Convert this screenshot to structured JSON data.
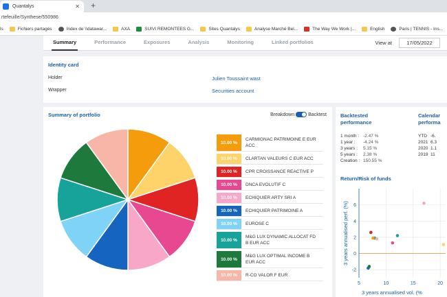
{
  "browser": {
    "tab_title": "Quantalys",
    "url": "rtefeuille/Synthese/550986",
    "bookmarks": [
      "ls",
      "Fichiers partagés",
      "Index de \\\\datawar...",
      "AXA",
      "SUIVI REMONTEES G...",
      "Sites Quantalys",
      "Analyse Marché Bel...",
      "The Way We Work |...",
      "English",
      "Paris | TENNIS - Ins..."
    ]
  },
  "nav": {
    "tabs": [
      "Summary",
      "Performance",
      "Exposures",
      "Analysis",
      "Monitoring",
      "Linked portfolios"
    ],
    "view_at_label": "View at",
    "date": "17/05/2022"
  },
  "identity": {
    "title": "Identity card",
    "holder_label": "Holder",
    "holder_value": "Julien Toussaint wast",
    "wrapper_label": "Wrapper",
    "wrapper_value": "Securities account"
  },
  "summary": {
    "title": "Summary of portfolio",
    "toggle_left": "Breakdown",
    "toggle_right": "Backtest",
    "items": [
      {
        "pct": "10.00 %",
        "name": "CARMIGNAC PATRIMOINE E EUR ACC",
        "color": "#f59c0c"
      },
      {
        "pct": "10.00 %",
        "name": "CLARTAN VALEURS C EUR ACC",
        "color": "#fdd36a"
      },
      {
        "pct": "10.00 %",
        "name": "CPR CROISSANCE REACTIVE P",
        "color": "#e02323"
      },
      {
        "pct": "10.00 %",
        "name": "DNCA EVOLUTIF C",
        "color": "#e8488f"
      },
      {
        "pct": "10.00 %",
        "name": "ECHIQUIER ARTY SRI A",
        "color": "#f8a7c9"
      },
      {
        "pct": "10.00 %",
        "name": "ECHIQUIER PATRIMOINE A",
        "color": "#1565c0"
      },
      {
        "pct": "10.00 %",
        "name": "EUROSE C",
        "color": "#7fd3f7"
      },
      {
        "pct": "10.00 %",
        "name": "M&G LUX DYNAMIC ALLOCAT FD B EUR ACC",
        "color": "#17a39a"
      },
      {
        "pct": "10.00 %",
        "name": "M&G LUX OPTIMAL INCOME B EUR ACC",
        "color": "#1e7a3c"
      },
      {
        "pct": "10.00 %",
        "name": "R-CO VALOR F EUR",
        "color": "#f7b6a8"
      }
    ]
  },
  "backtest": {
    "title_line1": "Backtested",
    "title_line2": "performance",
    "rows": [
      {
        "label": "1 month :",
        "value": "-2.47 %"
      },
      {
        "label": "1 year :",
        "value": "-4.24 %"
      },
      {
        "label": "3 years :",
        "value": "5.15 %"
      },
      {
        "label": "5 years :",
        "value": "2.38 %"
      },
      {
        "label": "Creation :",
        "value": "150.55 %"
      }
    ]
  },
  "calendar": {
    "title_line1": "Calendar",
    "title_line2": "performa",
    "rows": [
      {
        "label": "YTD",
        "value": "-6."
      },
      {
        "label": "2021",
        "value": "6.3"
      },
      {
        "label": "2020",
        "value": "1.1"
      },
      {
        "label": "2019",
        "value": "11"
      }
    ]
  },
  "chart_data": {
    "type": "scatter",
    "title": "Return/Risk of funds",
    "xlabel": "3 years annualised vol. (%",
    "ylabel": "3 years annualised perf. (%)",
    "xlim": [
      5,
      21
    ],
    "ylim": [
      -3,
      8
    ],
    "xticks": [
      "5",
      "10",
      "15",
      "20"
    ],
    "yticks": [
      "-2",
      "0",
      "2",
      "4",
      "6"
    ],
    "points": [
      {
        "x": 17.0,
        "y": 6.2,
        "color": "#f8a7c9"
      },
      {
        "x": 7.2,
        "y": 2.6,
        "color": "#e02323"
      },
      {
        "x": 7.9,
        "y": 1.9,
        "color": "#17a39a"
      },
      {
        "x": 8.3,
        "y": 1.8,
        "color": "#f7b6a8"
      },
      {
        "x": 7.6,
        "y": 1.9,
        "color": "#f59c0c"
      },
      {
        "x": 11.2,
        "y": 1.3,
        "color": "#e8488f"
      },
      {
        "x": 12.1,
        "y": 2.2,
        "color": "#17a39a"
      },
      {
        "x": 6.7,
        "y": -1.8,
        "color": "#1565c0"
      },
      {
        "x": 6.9,
        "y": -1.6,
        "color": "#1e7a3c"
      },
      {
        "x": 20.6,
        "y": 1.1,
        "color": "#fdd36a"
      }
    ]
  }
}
